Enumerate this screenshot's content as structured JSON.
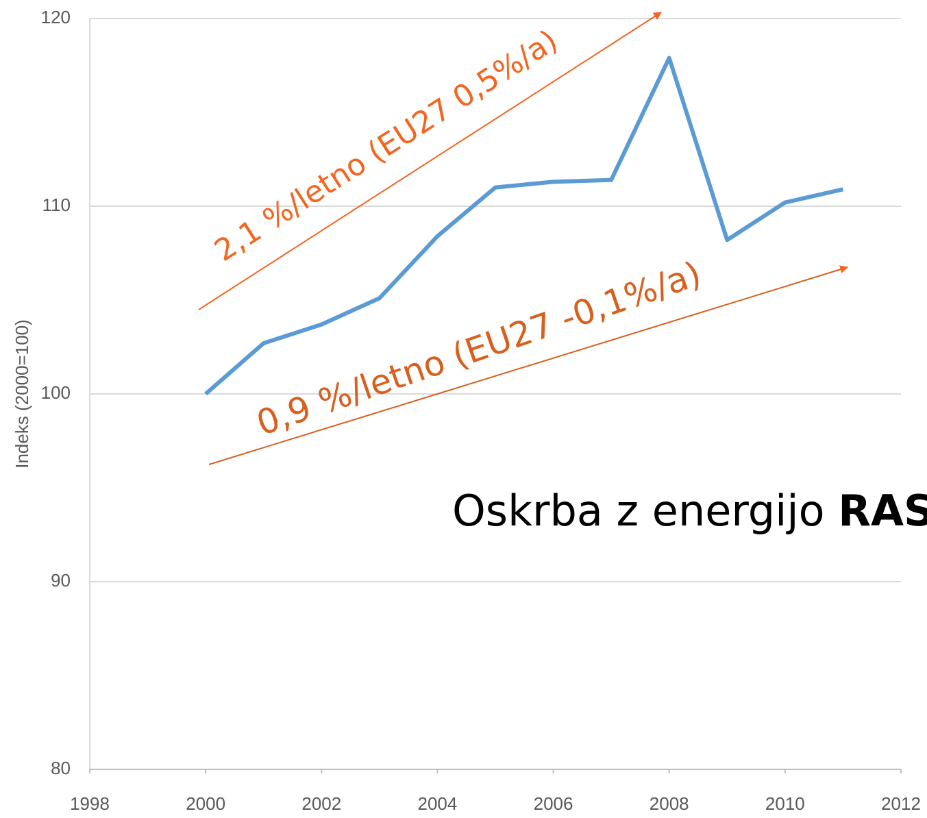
{
  "chart_data": {
    "type": "line",
    "y_label": "Indeks (2000=100)",
    "x": [
      2000,
      2001,
      2002,
      2003,
      2004,
      2005,
      2006,
      2007,
      2008,
      2009,
      2010,
      2011
    ],
    "series": [
      {
        "name": "Indeks",
        "color": "#5b9bd5",
        "values": [
          100,
          102.7,
          103.7,
          105.1,
          108.4,
          111.0,
          111.3,
          111.4,
          117.9,
          108.2,
          110.2,
          110.9
        ]
      }
    ],
    "xlim": [
      1998,
      2012
    ],
    "xticks": [
      1998,
      2000,
      2002,
      2004,
      2006,
      2008,
      2010,
      2012
    ],
    "ylim": [
      80,
      120
    ],
    "yticks": [
      80,
      90,
      100,
      110,
      120
    ],
    "grid": true,
    "annotations": {
      "upper_trend": "2,1 %/letno  (EU27 0,5%/a)",
      "lower_trend": "0,9 %/letno  (EU27 -0,1%/a)",
      "caption": "Oskrba z energijo",
      "caption_bold": "RAS"
    }
  }
}
